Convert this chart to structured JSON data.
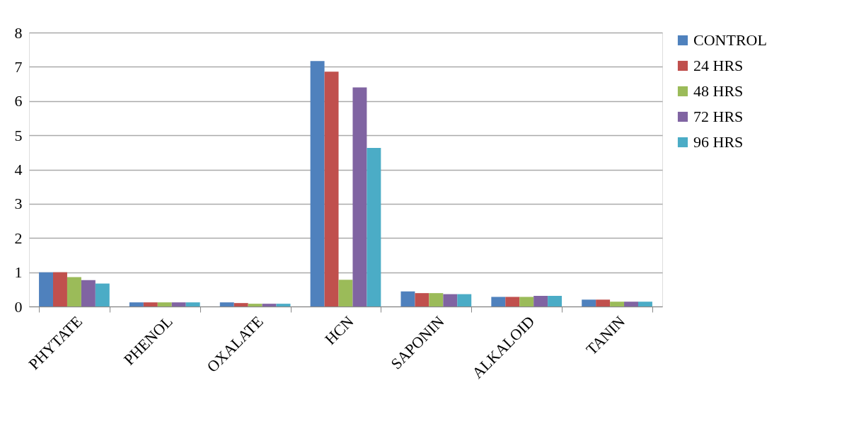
{
  "chart_data": {
    "type": "bar",
    "categories": [
      "PHYTATE",
      "PHENOL",
      "OXALATE",
      "HCN",
      "SAPONIN",
      "ALKALOID",
      "TANIN"
    ],
    "series": [
      {
        "name": "CONTROL",
        "color": "#4f81bd",
        "values": [
          1.0,
          0.12,
          0.12,
          7.17,
          0.44,
          0.28,
          0.2
        ]
      },
      {
        "name": "24 HRS",
        "color": "#c0504d",
        "values": [
          1.0,
          0.12,
          0.1,
          6.86,
          0.39,
          0.28,
          0.2
        ]
      },
      {
        "name": "48 HRS",
        "color": "#9bbb59",
        "values": [
          0.86,
          0.12,
          0.08,
          0.78,
          0.39,
          0.28,
          0.14
        ]
      },
      {
        "name": "72 HRS",
        "color": "#8064a2",
        "values": [
          0.77,
          0.12,
          0.08,
          6.4,
          0.36,
          0.31,
          0.14
        ]
      },
      {
        "name": "96 HRS",
        "color": "#4bacc6",
        "values": [
          0.67,
          0.12,
          0.08,
          4.63,
          0.36,
          0.31,
          0.14
        ]
      }
    ],
    "ylim": [
      0,
      8
    ],
    "yticks": [
      0,
      1,
      2,
      3,
      4,
      5,
      6,
      7,
      8
    ],
    "grid": "y",
    "legend": "right"
  }
}
